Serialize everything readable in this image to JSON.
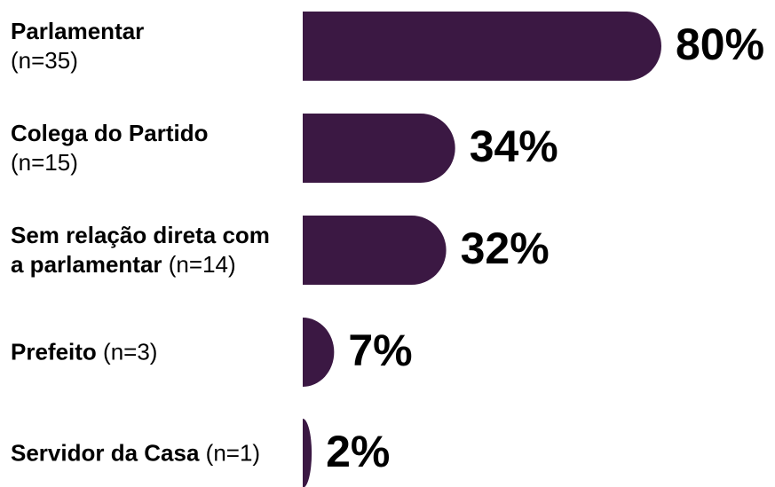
{
  "chart_data": {
    "type": "bar",
    "orientation": "horizontal",
    "categories": [
      "Parlamentar",
      "Colega do Partido",
      "Sem relação direta com a parlamentar",
      "Prefeito",
      "Servidor da Casa"
    ],
    "sample_sizes": [
      "(n=35)",
      "(n=15)",
      "(n=14)",
      "(n=3)",
      "(n=1)"
    ],
    "values": [
      80,
      34,
      32,
      7,
      2
    ],
    "value_labels": [
      "80%",
      "34%",
      "32%",
      "7%",
      "2%"
    ],
    "color": "#3b1843"
  }
}
